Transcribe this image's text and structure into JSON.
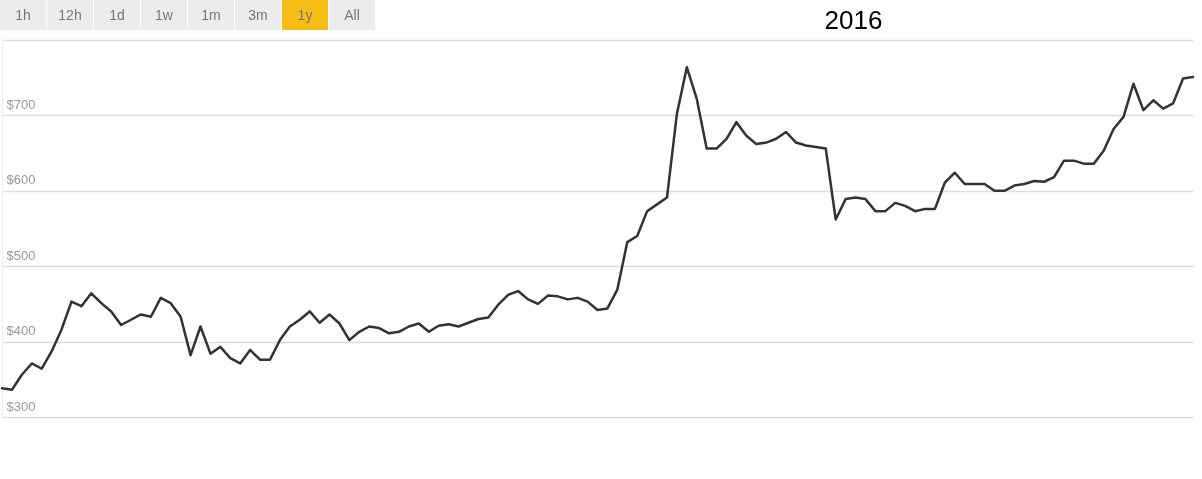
{
  "chart_data": {
    "type": "line",
    "title": "2016",
    "annotations": [
      "1h",
      "12h",
      "1d",
      "1w",
      "1m",
      "3m",
      "1y",
      "All"
    ],
    "categories": [
      null,
      null,
      null,
      null,
      null,
      null,
      null,
      null,
      null,
      null,
      null,
      null,
      null,
      null,
      null,
      null,
      null,
      null,
      null,
      null,
      null,
      null,
      null,
      null,
      null,
      null,
      null,
      null,
      null,
      null,
      null,
      null,
      null,
      null,
      null,
      null,
      null,
      null,
      null,
      null,
      null,
      null,
      null,
      null,
      null,
      null,
      null,
      null,
      null,
      null,
      null,
      null,
      null,
      null,
      null,
      null,
      null,
      null,
      null,
      null,
      null,
      null,
      null,
      null,
      null,
      null,
      null,
      null,
      null,
      null,
      null,
      null,
      null,
      null,
      null,
      null,
      null,
      null,
      null,
      null,
      null,
      null,
      null,
      null,
      null,
      null,
      null,
      null,
      null,
      null,
      null,
      null,
      null,
      null,
      null,
      null,
      null,
      null,
      null,
      null,
      null,
      null,
      null,
      null,
      null,
      null,
      null,
      null,
      null,
      null,
      null,
      null,
      null,
      null,
      null,
      null,
      null,
      null,
      null,
      null,
      null
    ],
    "series": [
      {
        "color": "#333333",
        "values": [
          338,
          336,
          356,
          371,
          364,
          387,
          416,
          453,
          447,
          464,
          451,
          440,
          422,
          429,
          436,
          433,
          458,
          451,
          433,
          382,
          420,
          384,
          393,
          378,
          371,
          389,
          376,
          376,
          402,
          420,
          429,
          440,
          425,
          436,
          424,
          402,
          413,
          420,
          418,
          411,
          413,
          420,
          424,
          413,
          421,
          423,
          420,
          425,
          430,
          432,
          449,
          462,
          467,
          456,
          450,
          461,
          460,
          456,
          458,
          453,
          442,
          444,
          469,
          532,
          540,
          573,
          582,
          591,
          702,
          764,
          722,
          656,
          656,
          669,
          691,
          673,
          662,
          664,
          669,
          678,
          664,
          660,
          658,
          656,
          562,
          589,
          591,
          589,
          573,
          573,
          584,
          580,
          573,
          576,
          576,
          611,
          624,
          609,
          609,
          609,
          600,
          600,
          607,
          609,
          613,
          612,
          618,
          640,
          640,
          636,
          636,
          653,
          682,
          698,
          742,
          707,
          720,
          709,
          716,
          749,
          751
        ]
      }
    ],
    "ylim": [
      300,
      800
    ],
    "yticks": [
      {
        "value": 300,
        "label": "$300"
      },
      {
        "value": 400,
        "label": "$400"
      },
      {
        "value": 500,
        "label": "$500"
      },
      {
        "value": 600,
        "label": "$600"
      },
      {
        "value": 700,
        "label": "$700"
      },
      {
        "value": 800,
        "label": null
      }
    ],
    "grid": "y",
    "tick_labels": "y"
  }
}
